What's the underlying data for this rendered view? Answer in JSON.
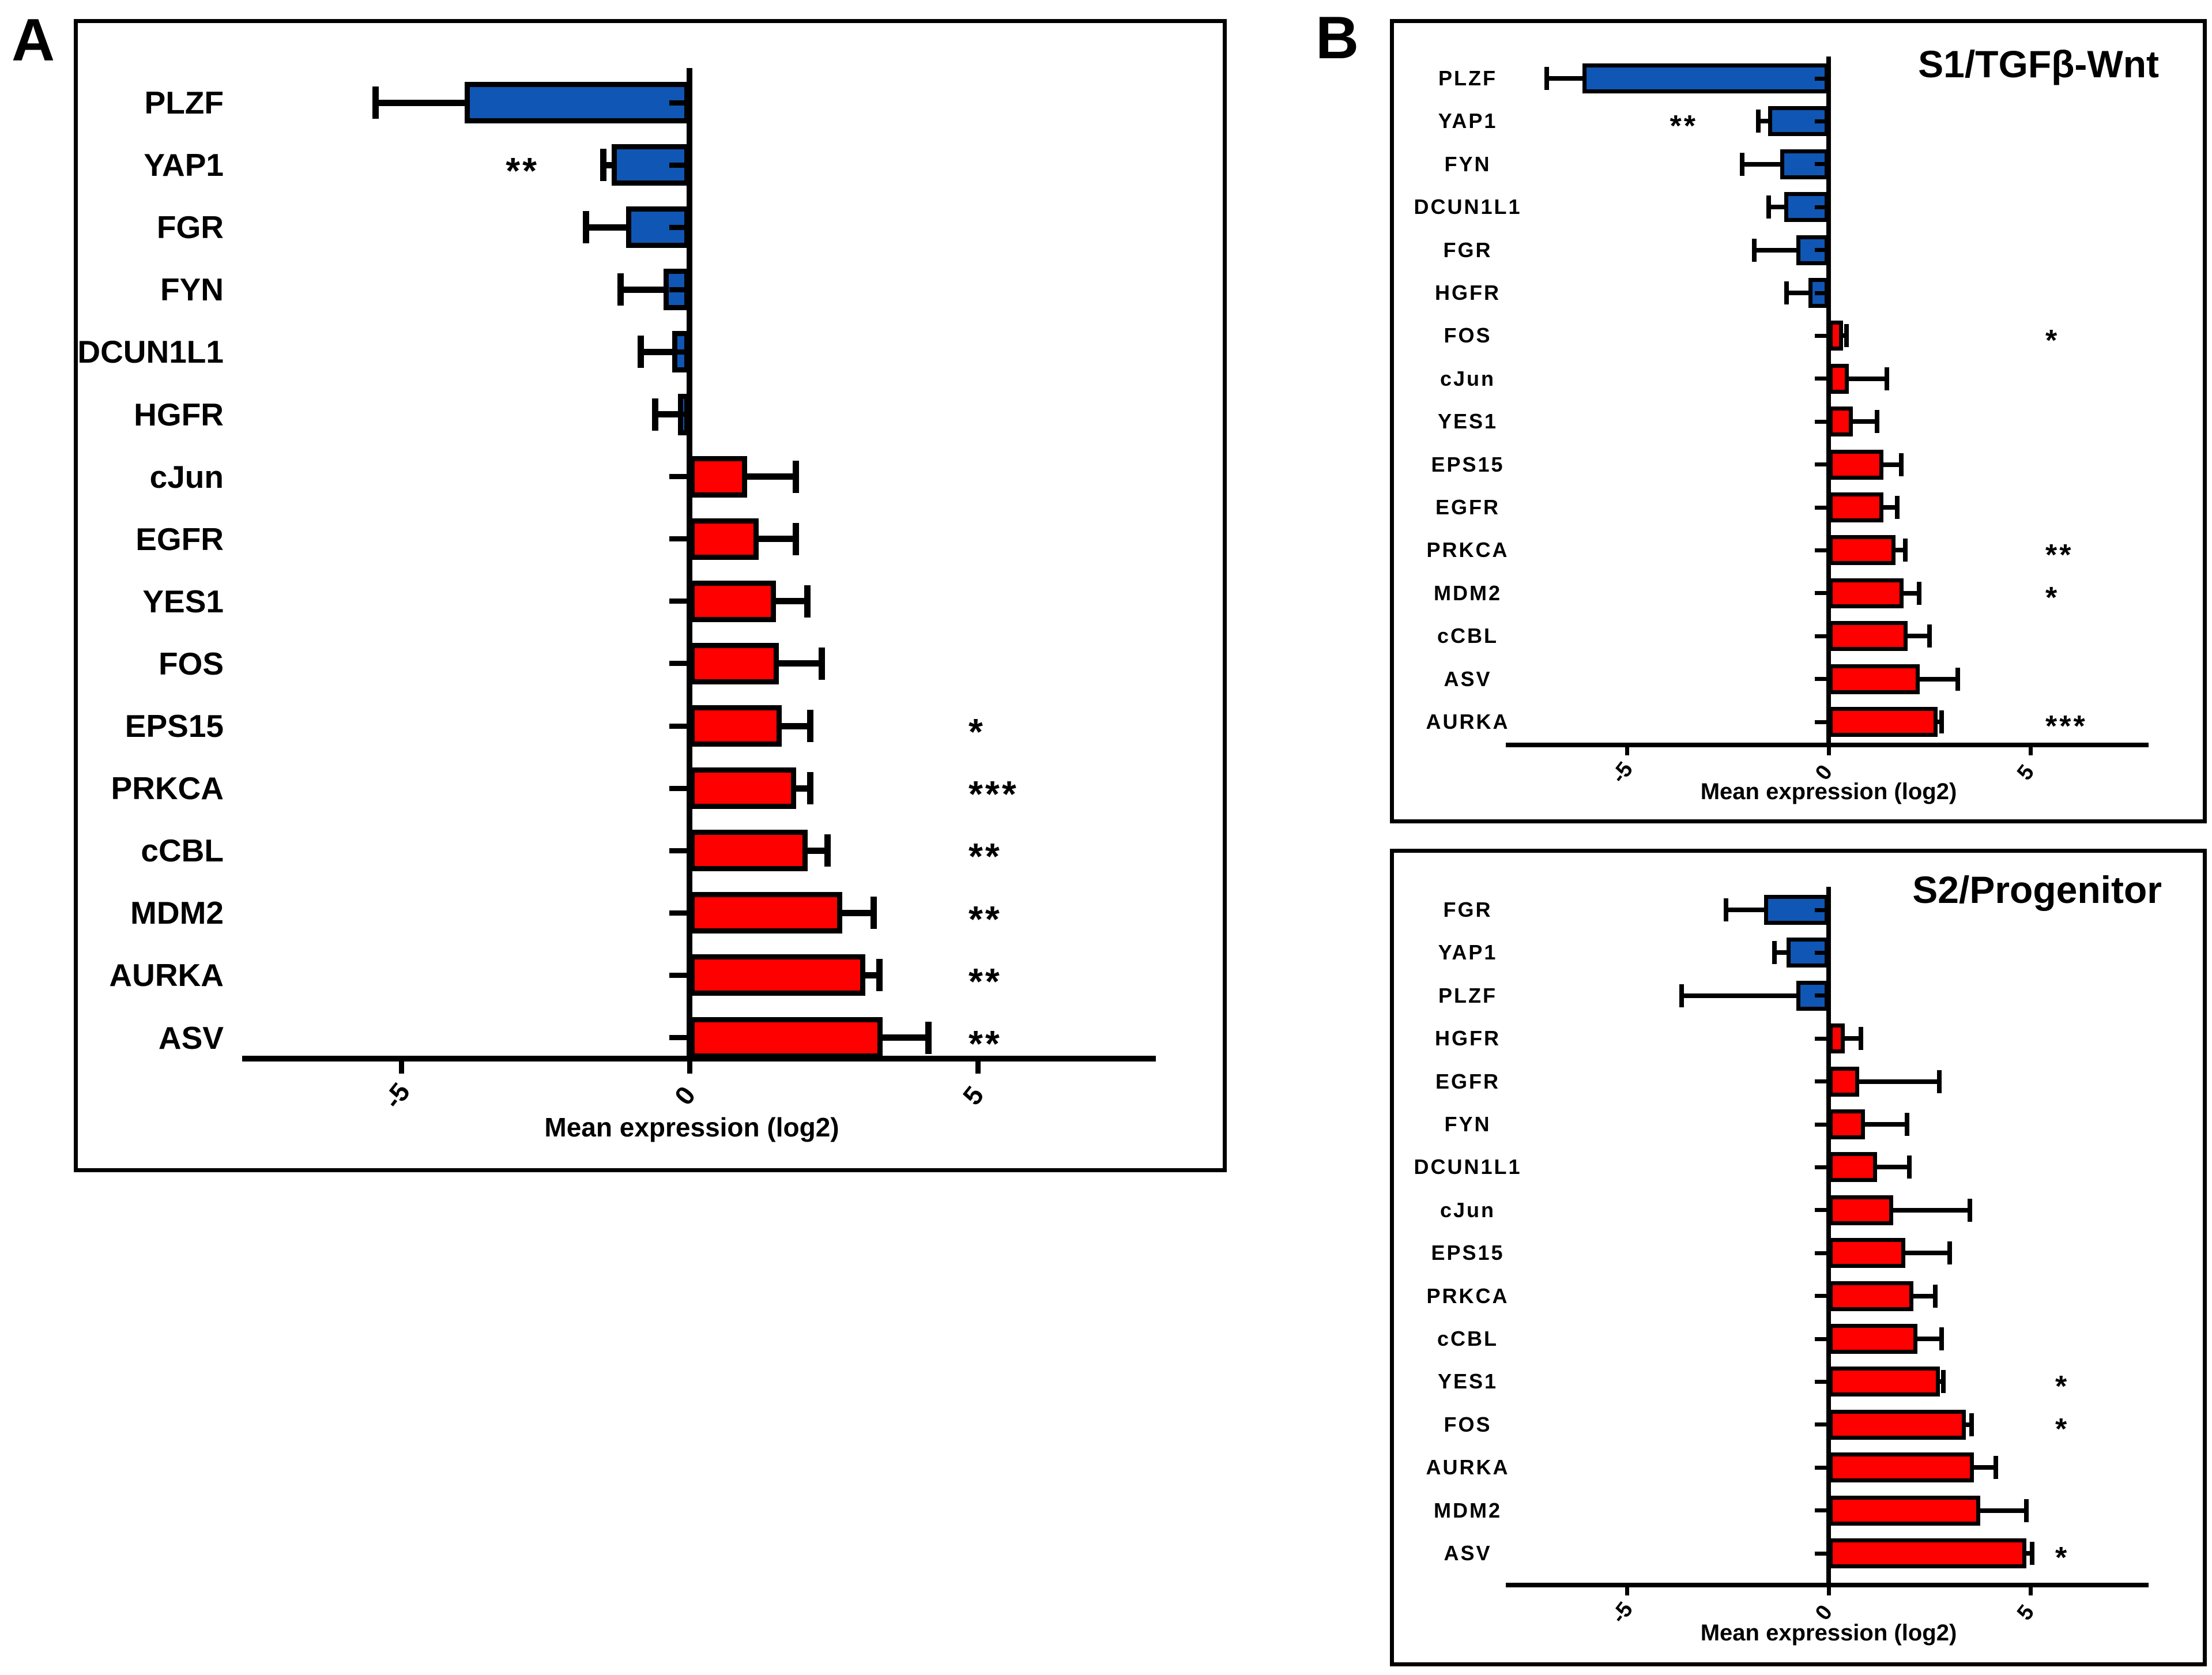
{
  "figure": {
    "panel_a_label": "A",
    "panel_b_label": "B"
  },
  "chart_data": [
    {
      "id": "A",
      "type": "bar",
      "orientation": "horizontal",
      "title": "",
      "xlabel": "Mean expression (log2)",
      "xtick_labels": [
        "-5",
        "0",
        "5"
      ],
      "xtick_values": [
        -5,
        0,
        5
      ],
      "xlim": [
        -7.8,
        8.1
      ],
      "grid": false,
      "bar_colors": {
        "negative": "#1056b4",
        "positive": "#fe0000"
      },
      "rows": [
        {
          "gene": "PLZF",
          "value": -3.9,
          "error": 1.6,
          "sig": "",
          "sig_side": "right"
        },
        {
          "gene": "YAP1",
          "value": -1.35,
          "error": 0.2,
          "sig": "**",
          "sig_side": "left"
        },
        {
          "gene": "FGR",
          "value": -1.1,
          "error": 0.75,
          "sig": "",
          "sig_side": "right"
        },
        {
          "gene": "FYN",
          "value": -0.45,
          "error": 0.8,
          "sig": "",
          "sig_side": "right"
        },
        {
          "gene": "DCUN1L1",
          "value": -0.3,
          "error": 0.6,
          "sig": "",
          "sig_side": "right"
        },
        {
          "gene": "HGFR",
          "value": -0.2,
          "error": 0.45,
          "sig": "",
          "sig_side": "right"
        },
        {
          "gene": "cJun",
          "value": 1.0,
          "error": 0.9,
          "sig": "",
          "sig_side": "right"
        },
        {
          "gene": "EGFR",
          "value": 1.2,
          "error": 0.7,
          "sig": "",
          "sig_side": "right"
        },
        {
          "gene": "YES1",
          "value": 1.5,
          "error": 0.6,
          "sig": "",
          "sig_side": "right"
        },
        {
          "gene": "FOS",
          "value": 1.55,
          "error": 0.8,
          "sig": "",
          "sig_side": "right"
        },
        {
          "gene": "EPS15",
          "value": 1.6,
          "error": 0.55,
          "sig": "*",
          "sig_side": "right"
        },
        {
          "gene": "PRKCA",
          "value": 1.85,
          "error": 0.3,
          "sig": "***",
          "sig_side": "right"
        },
        {
          "gene": "cCBL",
          "value": 2.05,
          "error": 0.4,
          "sig": "**",
          "sig_side": "right"
        },
        {
          "gene": "MDM2",
          "value": 2.65,
          "error": 0.6,
          "sig": "**",
          "sig_side": "right"
        },
        {
          "gene": "AURKA",
          "value": 3.05,
          "error": 0.3,
          "sig": "**",
          "sig_side": "right"
        },
        {
          "gene": "ASV",
          "value": 3.35,
          "error": 0.85,
          "sig": "**",
          "sig_side": "right"
        }
      ]
    },
    {
      "id": "S1",
      "type": "bar",
      "orientation": "horizontal",
      "title": "S1/TGFβ-Wnt",
      "xlabel": "Mean expression (log2)",
      "xtick_labels": [
        "-5",
        "0",
        "5"
      ],
      "xtick_values": [
        -5,
        0,
        5
      ],
      "xlim": [
        -8,
        7.9
      ],
      "grid": false,
      "bar_colors": {
        "negative": "#1056b4",
        "positive": "#fe0000"
      },
      "rows": [
        {
          "gene": "PLZF",
          "value": -6.1,
          "error": 0.95,
          "sig": "",
          "sig_side": "right"
        },
        {
          "gene": "YAP1",
          "value": -1.5,
          "error": 0.3,
          "sig": "**",
          "sig_side": "left"
        },
        {
          "gene": "FYN",
          "value": -1.2,
          "error": 1.0,
          "sig": "",
          "sig_side": "right"
        },
        {
          "gene": "DCUN1L1",
          "value": -1.1,
          "error": 0.45,
          "sig": "",
          "sig_side": "right"
        },
        {
          "gene": "FGR",
          "value": -0.8,
          "error": 1.1,
          "sig": "",
          "sig_side": "right"
        },
        {
          "gene": "HGFR",
          "value": -0.5,
          "error": 0.6,
          "sig": "",
          "sig_side": "right"
        },
        {
          "gene": "FOS",
          "value": 0.35,
          "error": 0.15,
          "sig": "*",
          "sig_side": "right"
        },
        {
          "gene": "cJun",
          "value": 0.5,
          "error": 1.0,
          "sig": "",
          "sig_side": "right"
        },
        {
          "gene": "YES1",
          "value": 0.6,
          "error": 0.65,
          "sig": "",
          "sig_side": "right"
        },
        {
          "gene": "EPS15",
          "value": 1.35,
          "error": 0.5,
          "sig": "",
          "sig_side": "right"
        },
        {
          "gene": "EGFR",
          "value": 1.35,
          "error": 0.4,
          "sig": "",
          "sig_side": "right"
        },
        {
          "gene": "PRKCA",
          "value": 1.65,
          "error": 0.3,
          "sig": "**",
          "sig_side": "right"
        },
        {
          "gene": "MDM2",
          "value": 1.85,
          "error": 0.45,
          "sig": "*",
          "sig_side": "right"
        },
        {
          "gene": "cCBL",
          "value": 1.95,
          "error": 0.6,
          "sig": "",
          "sig_side": "right"
        },
        {
          "gene": "ASV",
          "value": 2.25,
          "error": 1.0,
          "sig": "",
          "sig_side": "right"
        },
        {
          "gene": "AURKA",
          "value": 2.7,
          "error": 0.15,
          "sig": "***",
          "sig_side": "right"
        }
      ]
    },
    {
      "id": "S2",
      "type": "bar",
      "orientation": "horizontal",
      "title": "S2/Progenitor",
      "xlabel": "Mean expression (log2)",
      "xtick_labels": [
        "-5",
        "0",
        "5"
      ],
      "xtick_values": [
        -5,
        0,
        5
      ],
      "xlim": [
        -8,
        7.9
      ],
      "grid": false,
      "bar_colors": {
        "negative": "#1056b4",
        "positive": "#fe0000"
      },
      "rows": [
        {
          "gene": "FGR",
          "value": -1.6,
          "error": 1.0,
          "sig": "",
          "sig_side": "right"
        },
        {
          "gene": "YAP1",
          "value": -1.05,
          "error": 0.35,
          "sig": "",
          "sig_side": "right"
        },
        {
          "gene": "PLZF",
          "value": -0.8,
          "error": 2.9,
          "sig": "",
          "sig_side": "right"
        },
        {
          "gene": "HGFR",
          "value": 0.4,
          "error": 0.45,
          "sig": "",
          "sig_side": "right"
        },
        {
          "gene": "EGFR",
          "value": 0.75,
          "error": 2.05,
          "sig": "",
          "sig_side": "right"
        },
        {
          "gene": "FYN",
          "value": 0.9,
          "error": 1.1,
          "sig": "",
          "sig_side": "right"
        },
        {
          "gene": "DCUN1L1",
          "value": 1.2,
          "error": 0.85,
          "sig": "",
          "sig_side": "right"
        },
        {
          "gene": "cJun",
          "value": 1.6,
          "error": 1.95,
          "sig": "",
          "sig_side": "right"
        },
        {
          "gene": "EPS15",
          "value": 1.9,
          "error": 1.15,
          "sig": "",
          "sig_side": "right"
        },
        {
          "gene": "PRKCA",
          "value": 2.1,
          "error": 0.6,
          "sig": "",
          "sig_side": "right"
        },
        {
          "gene": "cCBL",
          "value": 2.2,
          "error": 0.65,
          "sig": "",
          "sig_side": "right"
        },
        {
          "gene": "YES1",
          "value": 2.75,
          "error": 0.15,
          "sig": "*",
          "sig_side": "right"
        },
        {
          "gene": "FOS",
          "value": 3.4,
          "error": 0.2,
          "sig": "*",
          "sig_side": "right"
        },
        {
          "gene": "AURKA",
          "value": 3.6,
          "error": 0.6,
          "sig": "",
          "sig_side": "right"
        },
        {
          "gene": "MDM2",
          "value": 3.75,
          "error": 1.2,
          "sig": "",
          "sig_side": "right"
        },
        {
          "gene": "ASV",
          "value": 4.9,
          "error": 0.2,
          "sig": "*",
          "sig_side": "right"
        }
      ]
    }
  ]
}
